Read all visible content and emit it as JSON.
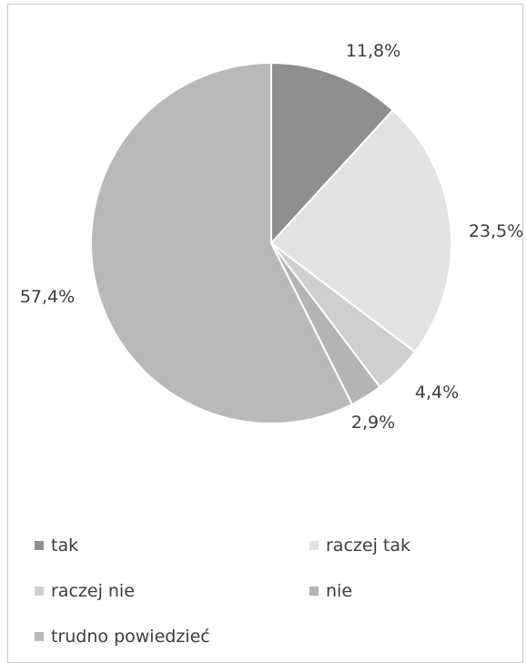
{
  "chart_data": {
    "type": "pie",
    "title": "",
    "slices": [
      {
        "label": "tak",
        "value": 11.8,
        "display": "11,8%",
        "color": "#8f8f8f"
      },
      {
        "label": "raczej tak",
        "value": 23.5,
        "display": "23,5%",
        "color": "#e2e2e2"
      },
      {
        "label": "raczej nie",
        "value": 4.4,
        "display": "4,4%",
        "color": "#cfcfcf"
      },
      {
        "label": "nie",
        "value": 2.9,
        "display": "2,9%",
        "color": "#b4b4b4"
      },
      {
        "label": "trudno powiedzieć",
        "value": 57.4,
        "display": "57,4%",
        "color": "#b9b9b9"
      }
    ],
    "start_angle_deg": 0,
    "direction": "clockwise",
    "legend_position": "bottom",
    "slice_border_color": "#ffffff"
  }
}
